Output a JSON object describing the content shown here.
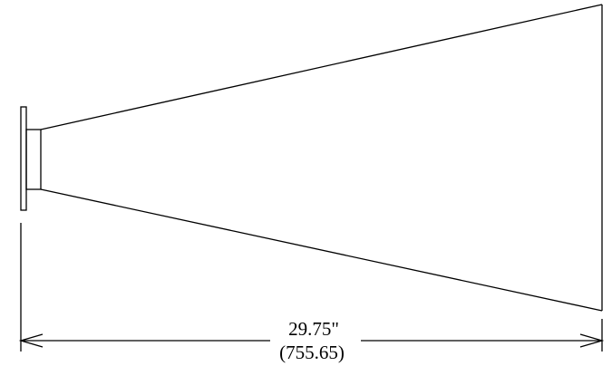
{
  "drawing": {
    "dimension": {
      "imperial": "29.75\"",
      "metric": "(755.65)"
    },
    "colors": {
      "line": "#000000",
      "background": "#ffffff"
    }
  }
}
